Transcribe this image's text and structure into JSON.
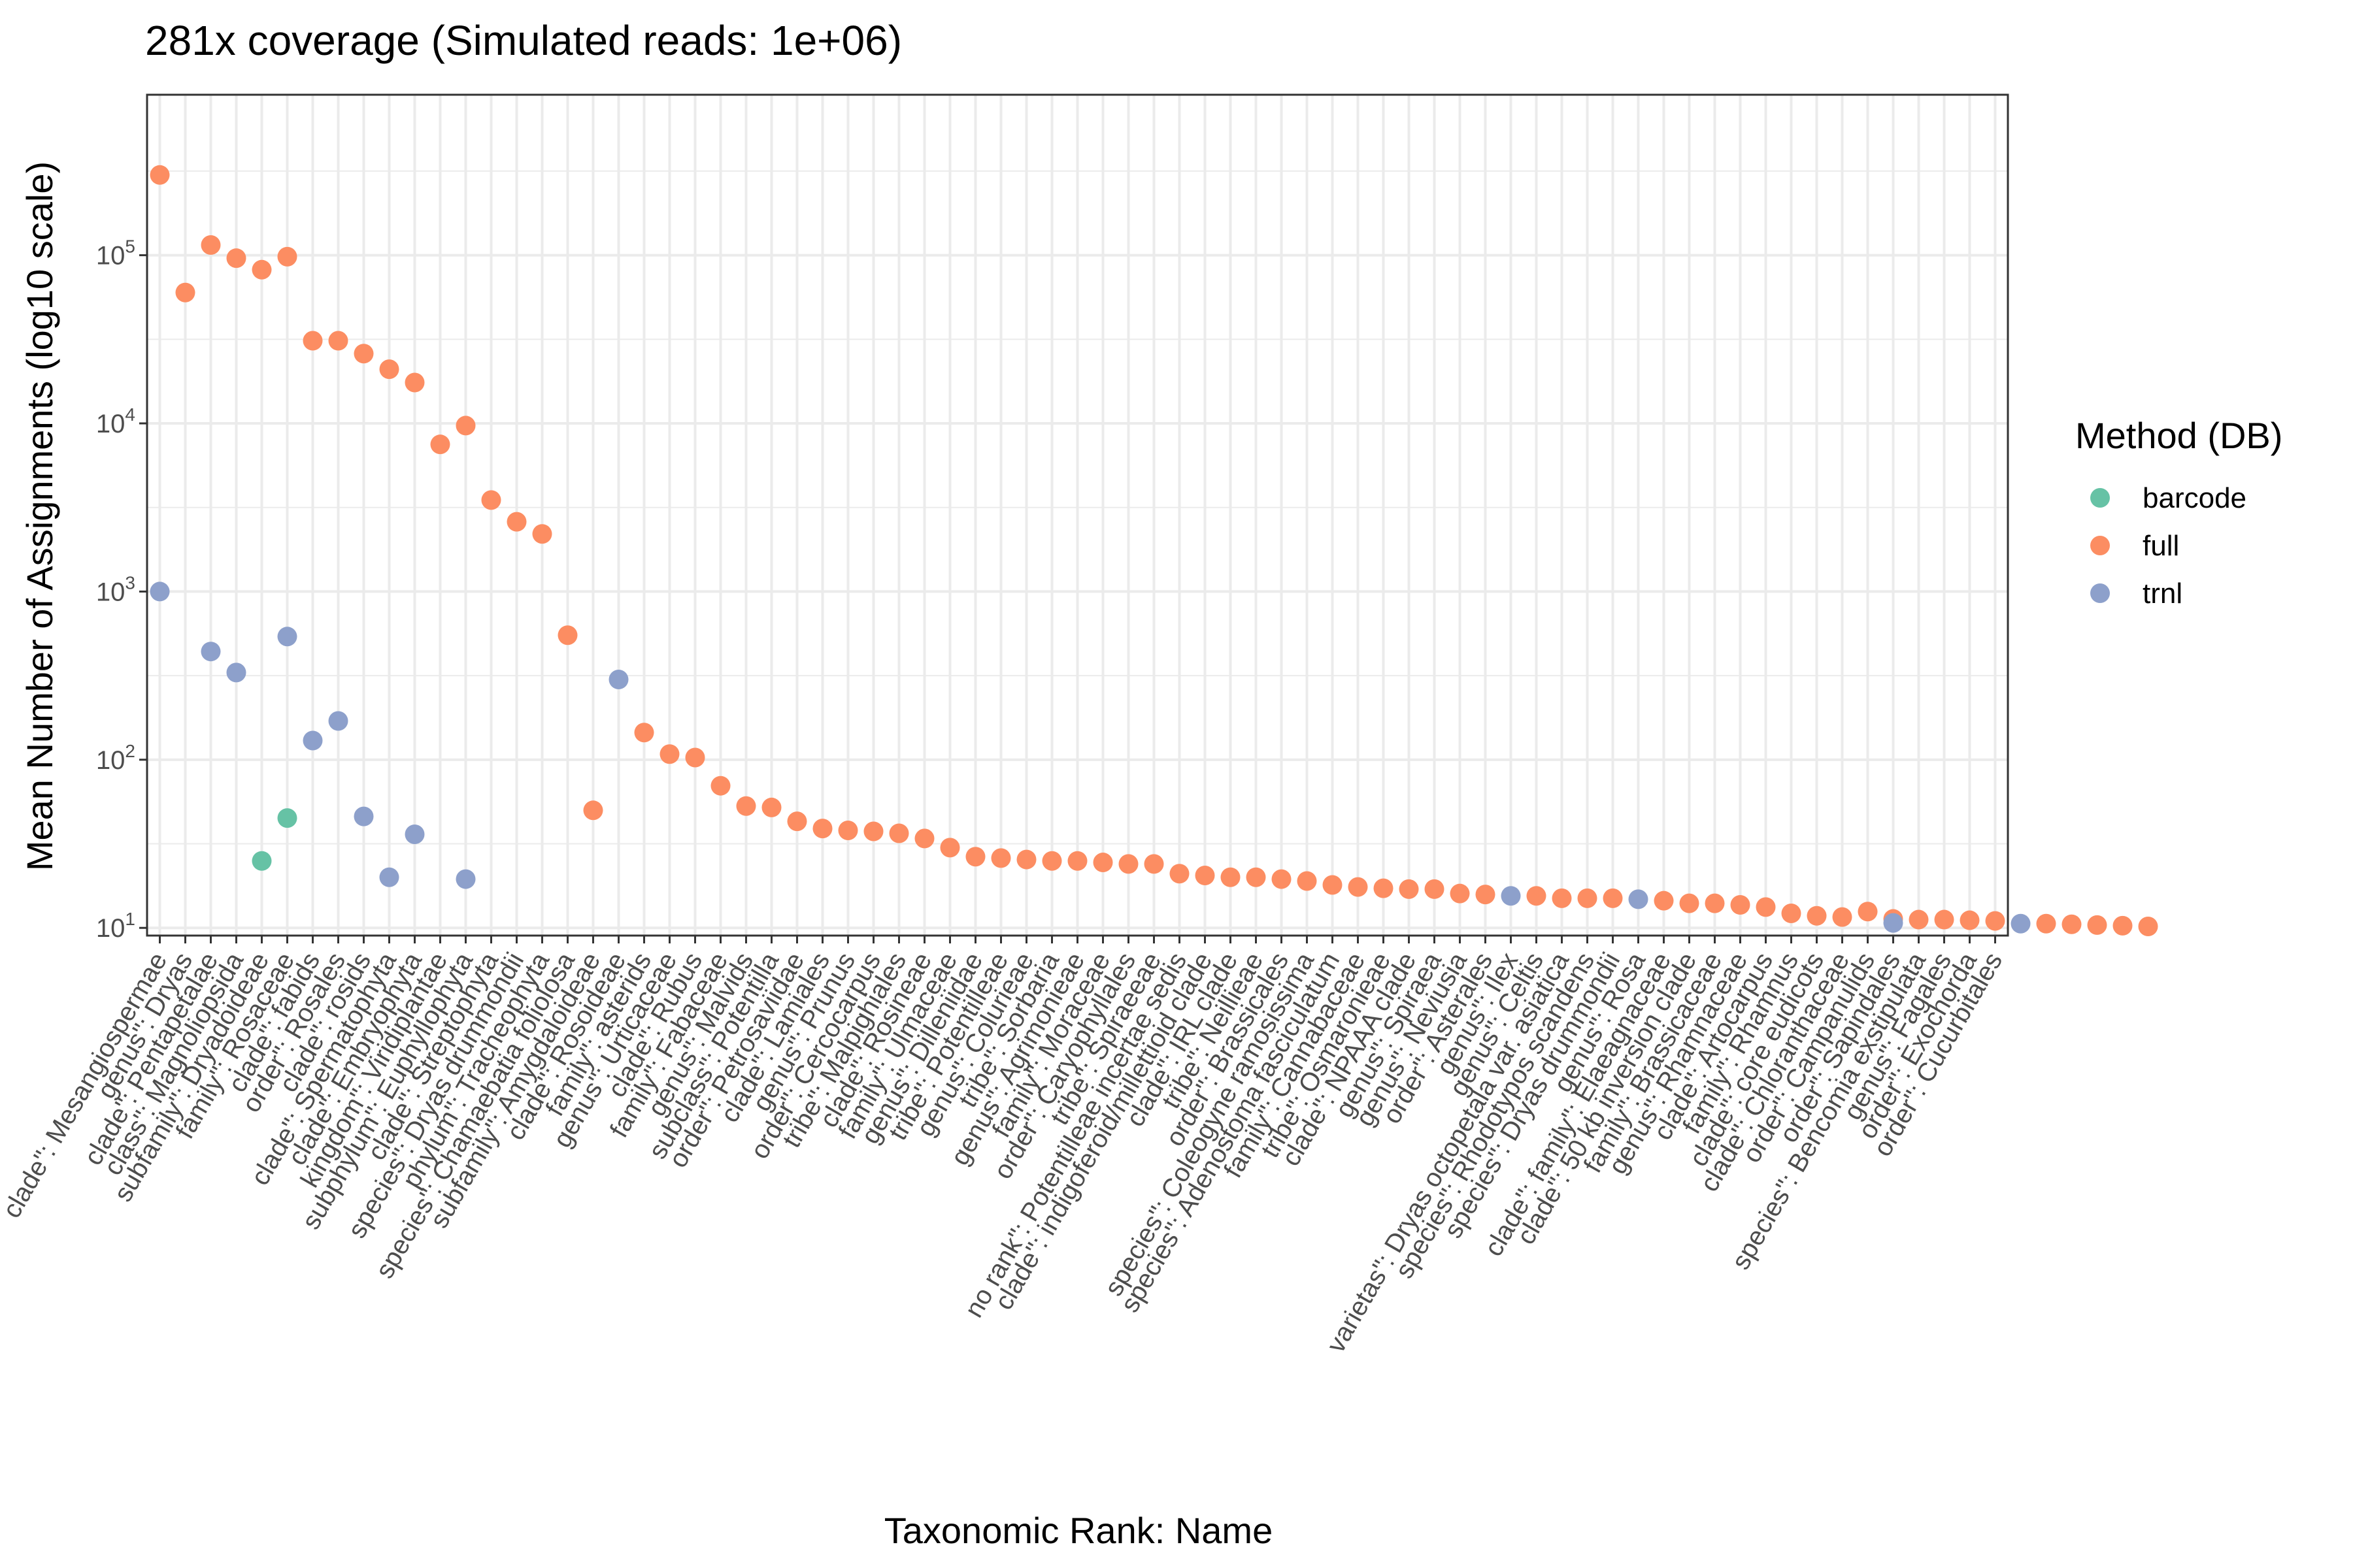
{
  "chart_data": {
    "type": "scatter",
    "title": "281x coverage (Simulated reads: 1e+06)",
    "xlabel": "Taxonomic Rank: Name",
    "ylabel": "Mean Number of Assignments (log10 scale)",
    "y_scale": "log10",
    "ylim": [
      9.0,
      900000
    ],
    "y_ticks": [
      10,
      100,
      1000,
      10000,
      100000
    ],
    "y_tick_labels": [
      {
        "base": "10",
        "exp": "1"
      },
      {
        "base": "10",
        "exp": "2"
      },
      {
        "base": "10",
        "exp": "3"
      },
      {
        "base": "10",
        "exp": "4"
      },
      {
        "base": "10",
        "exp": "5"
      }
    ],
    "grid": true,
    "legend": {
      "title": "Method (DB)",
      "placement": "right",
      "entries": [
        {
          "name": "barcode",
          "color": "#66c2a5"
        },
        {
          "name": "full",
          "color": "#fc8d62"
        },
        {
          "name": "trnl",
          "color": "#8da0cb"
        }
      ]
    },
    "categories": [
      "clade\": Mesangiospermae",
      "genus\": Dryas",
      "clade\": Pentapetalae",
      "class\": Magnoliopsida",
      "subfamily\": Dryadoideae",
      "family\": Rosaceae",
      "clade\": fabids",
      "order\": Rosales",
      "clade\": rosids",
      "clade\": Spermatophyta",
      "clade\": Embryophyta",
      "kingdom\": Viridiplantae",
      "subphylum\": Euphyllophyta",
      "clade\": Streptophyta",
      "species\": Dryas drummondii",
      "phylum\": Tracheophyta",
      "species\": Chamaebatia foliolosa",
      "subfamily\": Amygdaloideae",
      "clade\": Rosoideae",
      "family\": asterids",
      "genus\": Urticaceae",
      "clade\": Rubus",
      "family\": Fabaceae",
      "genus\": Malvids",
      "subclass\": Potentilla",
      "order\": Petrosaviidae",
      "clade\": Lamiales",
      "genus\": Prunus",
      "order\": Cercocarpus",
      "tribe\": Malpighiales",
      "clade\": Rosineae",
      "family\": Ulmaceae",
      "genus\": Dilleniidae",
      "tribe\": Potentilleae",
      "genus\": Colurieae",
      "tribe\": Sorbaria",
      "genus\": Agrimonieae",
      "family\": Moraceae",
      "order\": Caryophyllales",
      "tribe\": Spiraeeae",
      "no rank\": Potentilleae incertae sedis",
      "clade\": indigoferoid/millettioid clade",
      "clade\": IRL clade",
      "tribe\": Neillieae",
      "order\": Brassicales",
      "species\": Coleogyne ramosissima",
      "species\": Adenostoma fasciculatum",
      "family\": Cannabaceae",
      "tribe\": Osmaronieae",
      "clade\": NPAAA clade",
      "genus\": Spiraea",
      "genus\": Neviusia",
      "order\": Asterales",
      "genus\": Ilex",
      "genus\": Celtis",
      "varietas\": Dryas octopetala var. asiatica",
      "species\": Rhodotypos scandens",
      "species\": Dryas drummondii",
      "genus\": Rosa",
      "clade\": family\": Elaeagnaceae",
      "clade\": 50 kb inversion clade",
      "family\": Brassicaceae",
      "genus\": Rhamnaceae",
      "clade\": Artocarpus",
      "family\": Rhamnus",
      "clade\": core eudicots",
      "clade\": Chloranthaceae",
      "order\": Campanulids",
      "order\": Sapindales",
      "species\": Bencomia exstipulata",
      "genus\": Fagales",
      "order\": Exochorda",
      "order\": Cucurbitales"
    ],
    "series": [
      {
        "name": "full",
        "color": "#fc8d62",
        "points": [
          [
            1,
            300000
          ],
          [
            2,
            60000
          ],
          [
            3,
            115000
          ],
          [
            4,
            96000
          ],
          [
            5,
            82000
          ],
          [
            6,
            98000
          ],
          [
            7,
            31000
          ],
          [
            8,
            31000
          ],
          [
            9,
            26000
          ],
          [
            10,
            21000
          ],
          [
            11,
            17500
          ],
          [
            12,
            7500
          ],
          [
            13,
            9700
          ],
          [
            14,
            3500
          ],
          [
            15,
            2600
          ],
          [
            16,
            2200
          ],
          [
            17,
            550
          ],
          [
            18,
            50
          ],
          [
            20,
            145
          ],
          [
            21,
            108
          ],
          [
            22,
            103
          ],
          [
            23,
            70
          ],
          [
            24,
            53
          ],
          [
            25,
            52
          ],
          [
            26,
            43
          ],
          [
            27,
            39
          ],
          [
            28,
            38
          ],
          [
            29,
            37.5
          ],
          [
            30,
            36.5
          ],
          [
            31,
            34
          ],
          [
            32,
            30
          ],
          [
            33,
            26.5
          ],
          [
            34,
            26
          ],
          [
            35,
            25.5
          ],
          [
            36,
            25
          ],
          [
            37,
            25
          ],
          [
            38,
            24.5
          ],
          [
            39,
            24
          ],
          [
            40,
            24
          ],
          [
            41,
            21
          ],
          [
            42,
            20.5
          ],
          [
            43,
            20
          ],
          [
            44,
            20
          ],
          [
            45,
            19.5
          ],
          [
            46,
            19
          ],
          [
            47,
            18
          ],
          [
            48,
            17.5
          ],
          [
            49,
            17.2
          ],
          [
            50,
            17
          ],
          [
            51,
            17
          ],
          [
            52,
            16
          ],
          [
            53,
            15.8
          ],
          [
            55,
            15.5
          ],
          [
            56,
            15
          ],
          [
            57,
            15
          ],
          [
            58,
            15
          ],
          [
            60,
            14.5
          ],
          [
            61,
            14
          ],
          [
            62,
            14
          ],
          [
            63,
            13.7
          ],
          [
            64,
            13.3
          ],
          [
            65,
            12.2
          ],
          [
            66,
            11.8
          ],
          [
            67,
            11.6
          ],
          [
            68,
            12.5
          ],
          [
            69,
            11.3
          ],
          [
            70,
            11.2
          ],
          [
            71,
            11.2
          ],
          [
            72,
            11.1
          ],
          [
            73,
            11
          ],
          [
            75,
            10.6
          ],
          [
            76,
            10.5
          ],
          [
            77,
            10.4
          ],
          [
            78,
            10.3
          ],
          [
            79,
            10.2
          ]
        ]
      },
      {
        "name": "trnl",
        "color": "#8da0cb",
        "points": [
          [
            1,
            1000
          ],
          [
            3,
            440
          ],
          [
            4,
            330
          ],
          [
            6,
            540
          ],
          [
            7,
            130
          ],
          [
            8,
            170
          ],
          [
            9,
            46
          ],
          [
            10,
            20
          ],
          [
            11,
            36
          ],
          [
            13,
            19.5
          ],
          [
            19,
            300
          ],
          [
            54,
            15.5
          ],
          [
            59,
            14.8
          ],
          [
            69,
            10.7
          ],
          [
            74,
            10.6
          ]
        ]
      },
      {
        "name": "barcode",
        "color": "#66c2a5",
        "points": [
          [
            5,
            25
          ],
          [
            6,
            45
          ]
        ]
      }
    ]
  }
}
